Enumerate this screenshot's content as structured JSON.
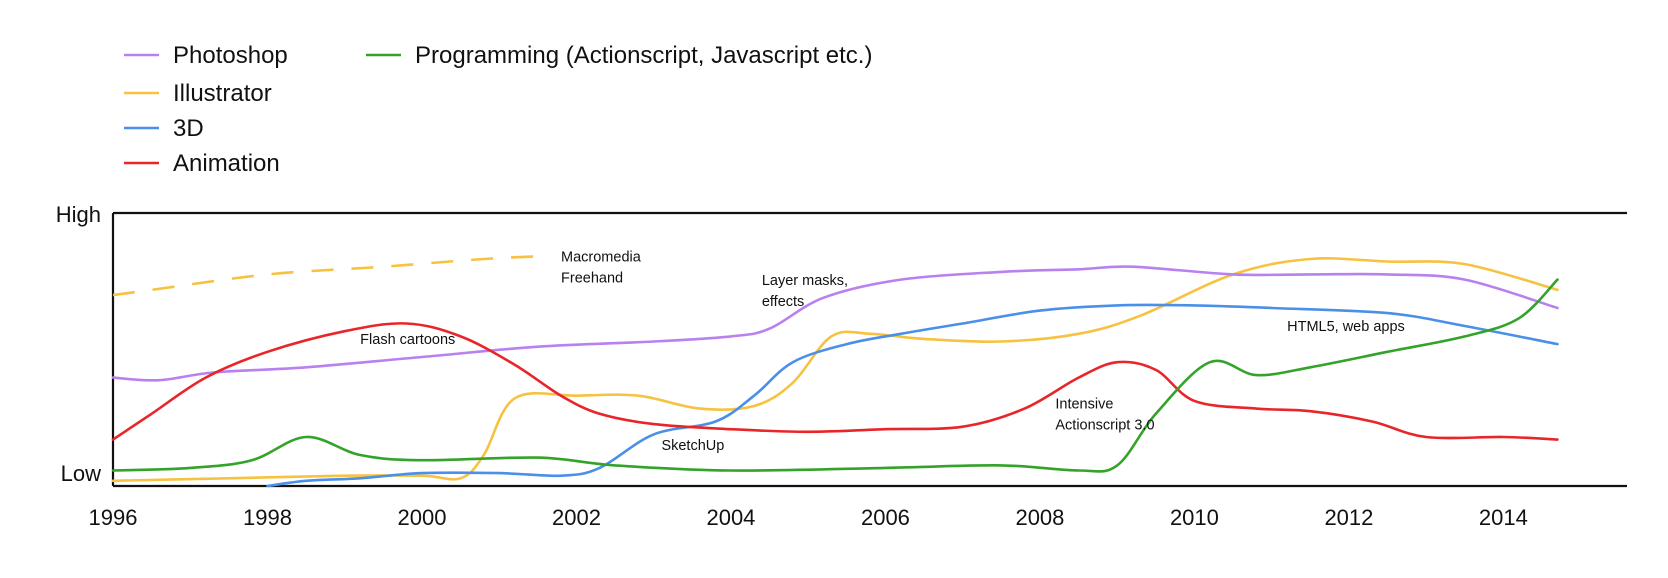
{
  "chart_data": {
    "type": "line",
    "title": "",
    "xlabel": "",
    "ylabel": "",
    "x_ticks": [
      "1996",
      "1998",
      "2000",
      "2002",
      "2004",
      "2006",
      "2008",
      "2010",
      "2012",
      "2014"
    ],
    "xlim": [
      1996,
      2015.6
    ],
    "y_ticks": [
      {
        "label": "Low",
        "value": 0
      },
      {
        "label": "High",
        "value": 100
      }
    ],
    "ylim": [
      0,
      100
    ],
    "grid": false,
    "legend_position": "top-left",
    "series": [
      {
        "name": "Photoshop",
        "color": "#b980f0",
        "dashed": false,
        "points": [
          [
            1996.0,
            42
          ],
          [
            1996.6,
            41
          ],
          [
            1997.3,
            44
          ],
          [
            1998.5,
            46
          ],
          [
            2000.0,
            50
          ],
          [
            2001.5,
            54
          ],
          [
            2003.0,
            56
          ],
          [
            2004.0,
            58
          ],
          [
            2004.5,
            61
          ],
          [
            2005.2,
            73
          ],
          [
            2006.2,
            80
          ],
          [
            2007.5,
            83
          ],
          [
            2008.5,
            84
          ],
          [
            2009.2,
            85
          ],
          [
            2010.5,
            82
          ],
          [
            2011.5,
            82
          ],
          [
            2012.5,
            82
          ],
          [
            2013.5,
            80
          ],
          [
            2014.7,
            69
          ]
        ]
      },
      {
        "name": "Illustrator",
        "color": "#f6c240",
        "dashed": false,
        "points": [
          [
            1996.0,
            2
          ],
          [
            1997.5,
            3
          ],
          [
            1999.0,
            4
          ],
          [
            2000.0,
            4
          ],
          [
            2000.5,
            3
          ],
          [
            2000.8,
            12
          ],
          [
            2001.2,
            34
          ],
          [
            2002.0,
            35
          ],
          [
            2002.8,
            35
          ],
          [
            2003.6,
            30
          ],
          [
            2004.3,
            31
          ],
          [
            2004.8,
            40
          ],
          [
            2005.3,
            58
          ],
          [
            2005.8,
            59
          ],
          [
            2006.5,
            57
          ],
          [
            2007.5,
            56
          ],
          [
            2008.5,
            59
          ],
          [
            2009.3,
            66
          ],
          [
            2010.5,
            82
          ],
          [
            2011.5,
            88
          ],
          [
            2012.5,
            87
          ],
          [
            2013.5,
            86
          ],
          [
            2014.7,
            76
          ]
        ]
      },
      {
        "name": "Macromedia Freehand",
        "color": "#f6c240",
        "dashed": true,
        "points": [
          [
            1996.0,
            74
          ],
          [
            1996.5,
            76
          ],
          [
            1998.0,
            82
          ],
          [
            1999.5,
            85
          ],
          [
            2000.8,
            88
          ],
          [
            2001.5,
            89
          ]
        ]
      },
      {
        "name": "3D",
        "color": "#4a90e8",
        "dashed": false,
        "points": [
          [
            1998.0,
            0
          ],
          [
            1998.5,
            2
          ],
          [
            1999.2,
            3
          ],
          [
            2000.0,
            5
          ],
          [
            2001.0,
            5
          ],
          [
            2001.8,
            4
          ],
          [
            2002.3,
            7
          ],
          [
            2003.0,
            20
          ],
          [
            2003.8,
            25
          ],
          [
            2004.3,
            35
          ],
          [
            2004.8,
            48
          ],
          [
            2005.5,
            55
          ],
          [
            2006.2,
            59
          ],
          [
            2007.0,
            63
          ],
          [
            2008.0,
            68
          ],
          [
            2009.0,
            70
          ],
          [
            2010.0,
            70
          ],
          [
            2011.0,
            69
          ],
          [
            2012.5,
            67
          ],
          [
            2013.5,
            62
          ],
          [
            2014.7,
            55
          ]
        ]
      },
      {
        "name": "Animation",
        "color": "#e8262a",
        "dashed": false,
        "points": [
          [
            1996.0,
            18
          ],
          [
            1996.5,
            28
          ],
          [
            1997.2,
            42
          ],
          [
            1998.0,
            52
          ],
          [
            1999.0,
            60
          ],
          [
            1999.8,
            63
          ],
          [
            2000.5,
            58
          ],
          [
            2001.2,
            47
          ],
          [
            2001.8,
            35
          ],
          [
            2002.3,
            28
          ],
          [
            2003.0,
            24
          ],
          [
            2004.0,
            22
          ],
          [
            2005.0,
            21
          ],
          [
            2006.0,
            22
          ],
          [
            2007.0,
            23
          ],
          [
            2007.8,
            30
          ],
          [
            2008.5,
            42
          ],
          [
            2009.0,
            48
          ],
          [
            2009.5,
            45
          ],
          [
            2010.0,
            33
          ],
          [
            2010.8,
            30
          ],
          [
            2011.5,
            29
          ],
          [
            2012.3,
            25
          ],
          [
            2013.0,
            19
          ],
          [
            2014.0,
            19
          ],
          [
            2014.7,
            18
          ]
        ]
      },
      {
        "name": "Programming (Actionscript, Javascript etc.)",
        "color": "#34a32a",
        "dashed": false,
        "points": [
          [
            1996.0,
            6
          ],
          [
            1997.0,
            7
          ],
          [
            1997.8,
            10
          ],
          [
            1998.5,
            19
          ],
          [
            1999.2,
            12
          ],
          [
            2000.0,
            10
          ],
          [
            2001.5,
            11
          ],
          [
            2002.5,
            8
          ],
          [
            2004.0,
            6
          ],
          [
            2006.0,
            7
          ],
          [
            2007.5,
            8
          ],
          [
            2008.5,
            6
          ],
          [
            2009.0,
            8
          ],
          [
            2009.5,
            28
          ],
          [
            2010.2,
            48
          ],
          [
            2010.8,
            43
          ],
          [
            2011.5,
            46
          ],
          [
            2012.5,
            52
          ],
          [
            2013.5,
            58
          ],
          [
            2014.2,
            65
          ],
          [
            2014.7,
            80
          ]
        ]
      }
    ],
    "annotations": [
      {
        "lines": [
          "Macromedia",
          "Freehand"
        ],
        "x": 2001.8,
        "y": 87
      },
      {
        "lines": [
          "Flash cartoons"
        ],
        "x": 1999.2,
        "y": 55
      },
      {
        "lines": [
          "Layer masks,",
          "effects"
        ],
        "x": 2004.4,
        "y": 78
      },
      {
        "lines": [
          "SketchUp"
        ],
        "x": 2003.1,
        "y": 14
      },
      {
        "lines": [
          "Intensive",
          "Actionscript 3.0"
        ],
        "x": 2008.2,
        "y": 30
      },
      {
        "lines": [
          "HTML5, web apps"
        ],
        "x": 2011.2,
        "y": 60
      }
    ]
  }
}
